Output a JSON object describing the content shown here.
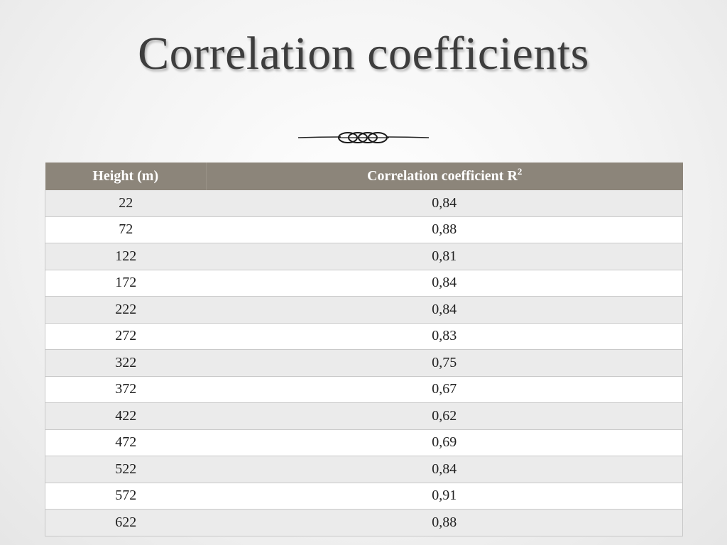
{
  "slide": {
    "title": "Correlation coefficients"
  },
  "table": {
    "header": {
      "col1": "Height (m)",
      "col2": "Correlation coefficient R",
      "col2_superscript": "2"
    },
    "rows": [
      {
        "height": "22",
        "r2": "0,84"
      },
      {
        "height": "72",
        "r2": "0,88"
      },
      {
        "height": "122",
        "r2": "0,81"
      },
      {
        "height": "172",
        "r2": "0,84"
      },
      {
        "height": "222",
        "r2": "0,84"
      },
      {
        "height": "272",
        "r2": "0,83"
      },
      {
        "height": "322",
        "r2": "0,75"
      },
      {
        "height": "372",
        "r2": "0,67"
      },
      {
        "height": "422",
        "r2": "0,62"
      },
      {
        "height": "472",
        "r2": "0,69"
      },
      {
        "height": "522",
        "r2": "0,84"
      },
      {
        "height": "572",
        "r2": "0,91"
      },
      {
        "height": "622",
        "r2": "0,88"
      }
    ]
  },
  "colors": {
    "header_background": "#8c857a",
    "odd_row": "#ebebeb",
    "even_row": "#ffffff",
    "title_text": "#3d3d3d"
  }
}
